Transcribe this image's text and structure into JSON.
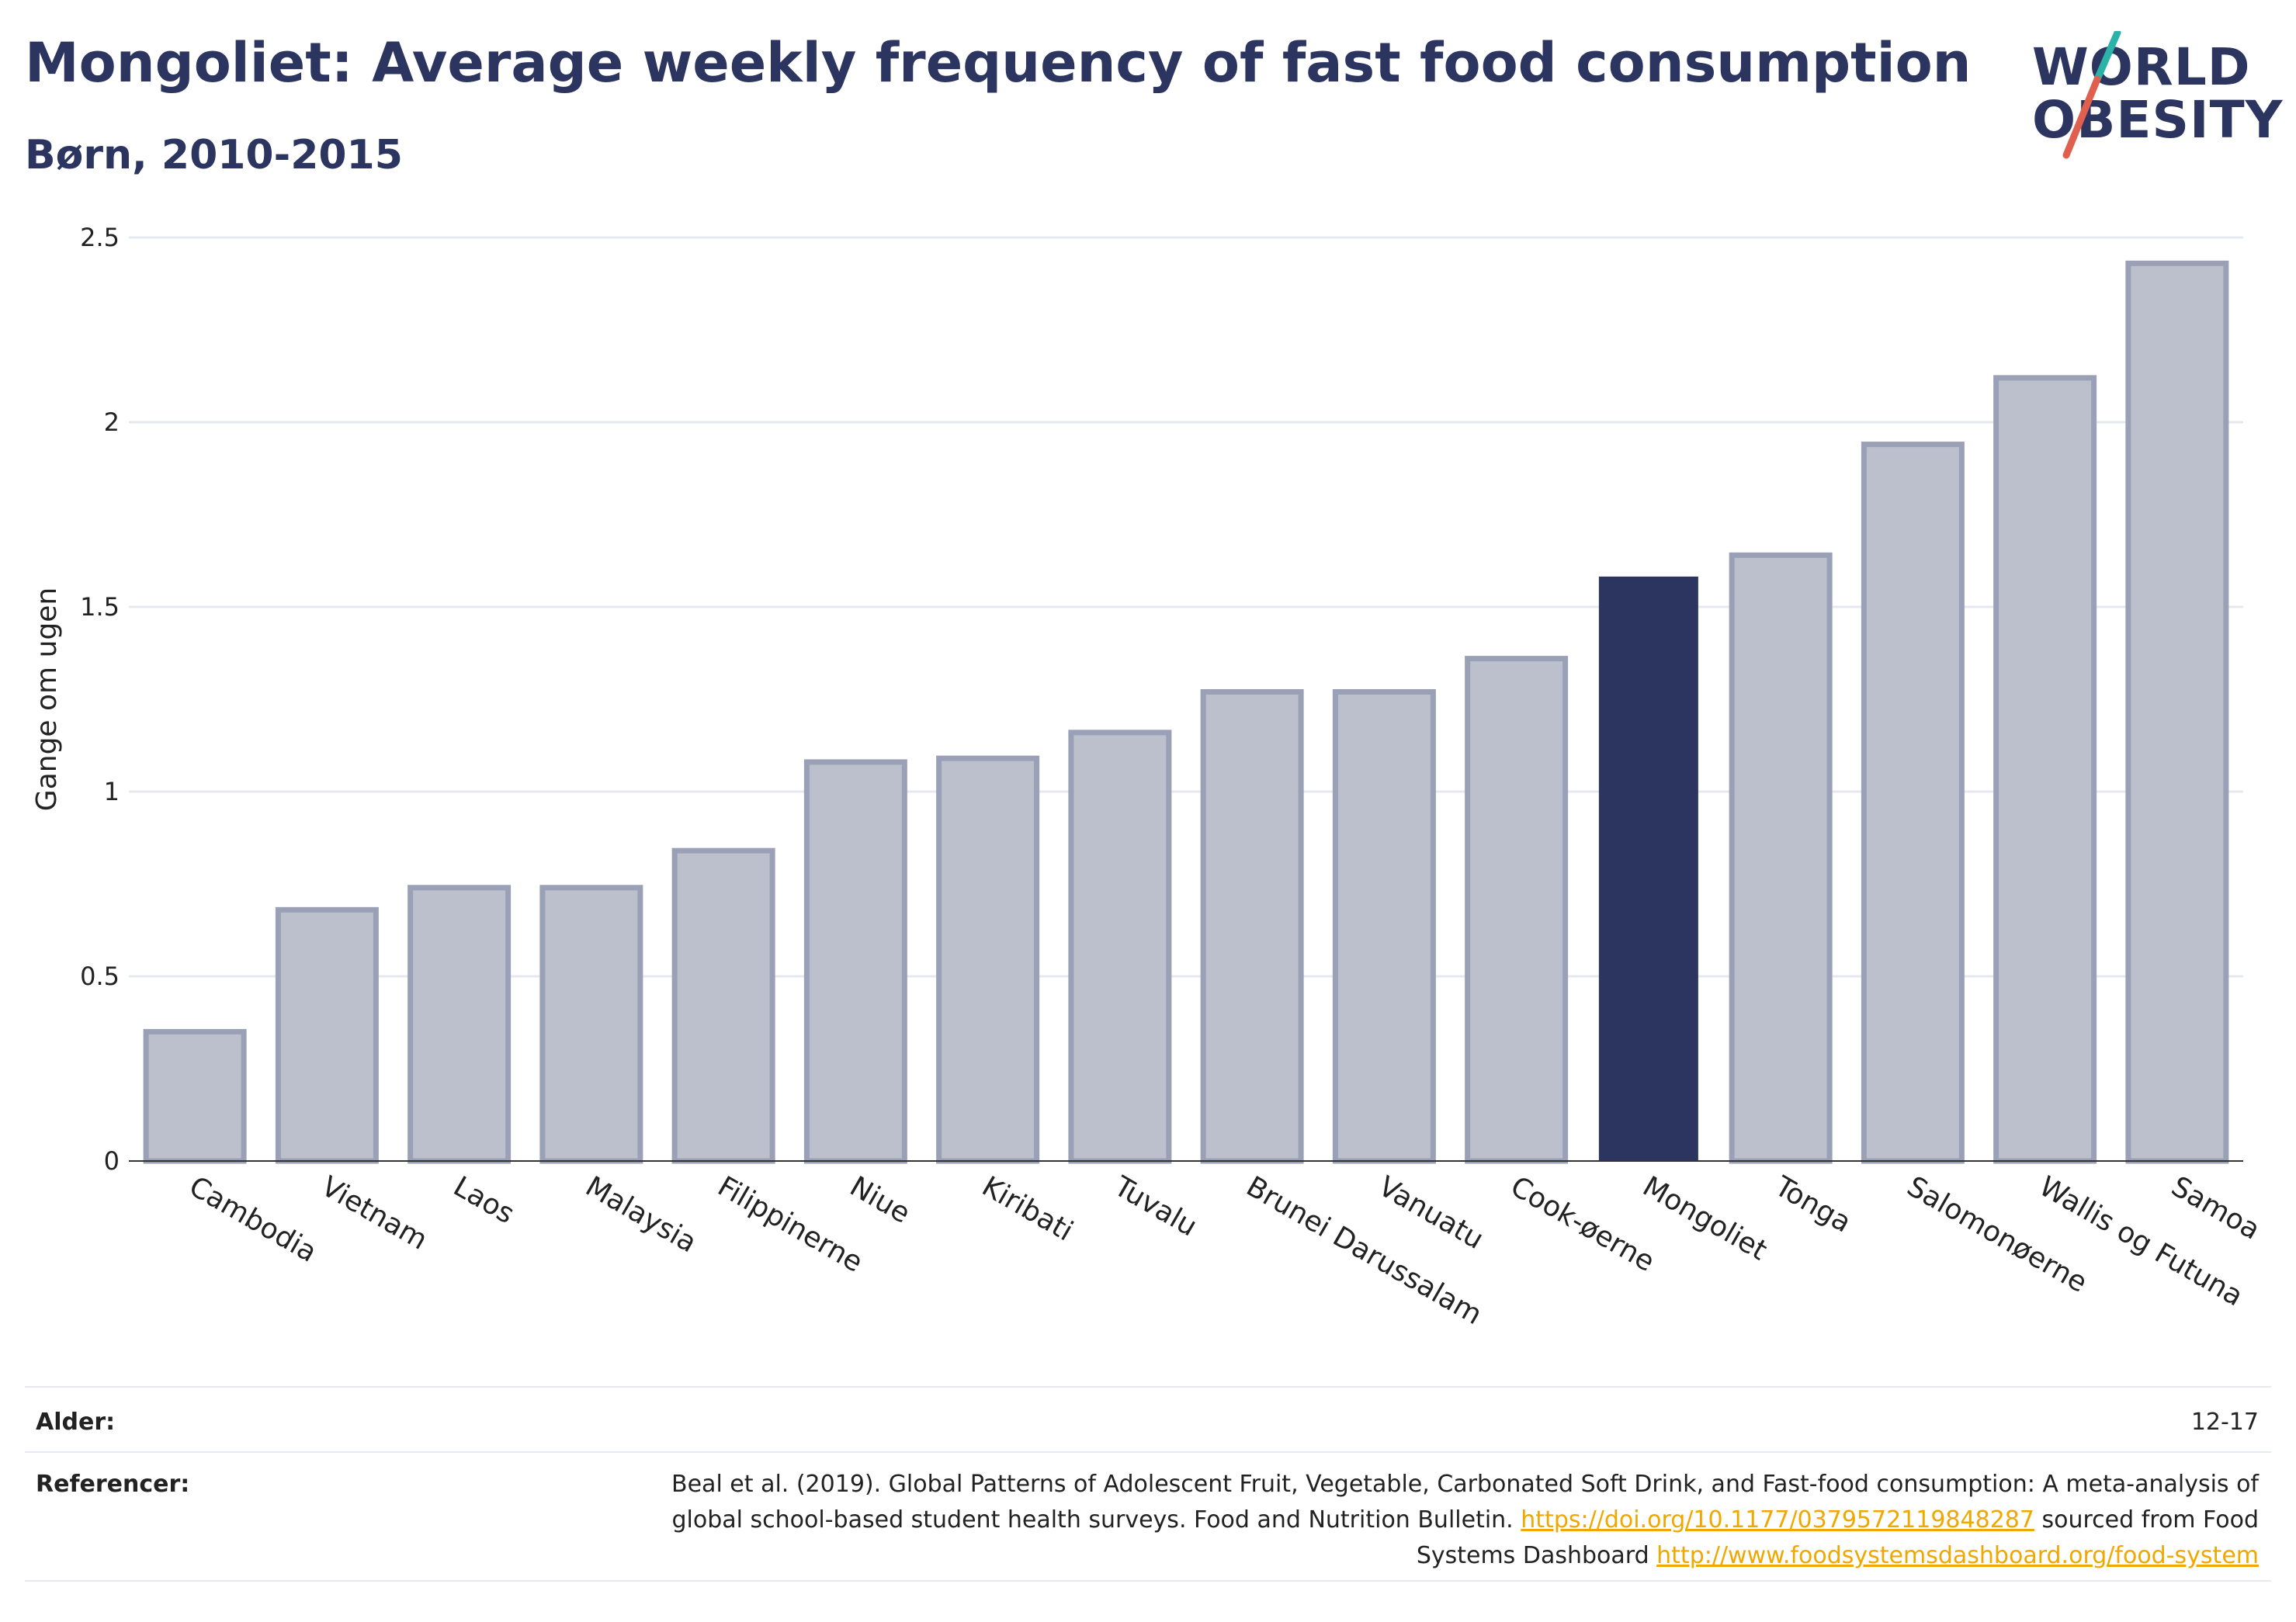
{
  "title": "Mongoliet: Average weekly frequency of fast food consumption",
  "subtitle": "Børn, 2010-2015",
  "logo": {
    "line1": "WORLD",
    "line2": "OBESITY"
  },
  "colors": {
    "highlight": "#2b3560",
    "bar": "#bcc0cd",
    "bar_edge": "#9aa0b6",
    "accent_teal": "#2bb3a8",
    "accent_red": "#e0604f",
    "link": "#f0a800"
  },
  "chart_data": {
    "type": "bar",
    "categories": [
      "Cambodia",
      "Vietnam",
      "Laos",
      "Malaysia",
      "Filippinerne",
      "Niue",
      "Kiribati",
      "Tuvalu",
      "Brunei Darussalam",
      "Vanuatu",
      "Cook-øerne",
      "Mongoliet",
      "Tonga",
      "Salomonøerne",
      "Wallis og Futuna",
      "Samoa"
    ],
    "values": [
      0.35,
      0.68,
      0.74,
      0.74,
      0.84,
      1.08,
      1.09,
      1.16,
      1.27,
      1.27,
      1.36,
      1.58,
      1.64,
      1.94,
      2.12,
      2.43
    ],
    "highlight": "Mongoliet",
    "ylabel": "Gange om ugen",
    "ylim": [
      0,
      2.5
    ],
    "yticks": [
      0,
      0.5,
      1,
      1.5,
      2,
      2.5
    ],
    "ytick_labels": [
      "0",
      "0.5",
      "1",
      "1.5",
      "2",
      "2.5"
    ],
    "grid": true
  },
  "footer": {
    "age_label": "Alder:",
    "age_value": "12-17",
    "ref_label": "Referencer:",
    "ref_text": "Beal et al. (2019). Global Patterns of Adolescent Fruit, Vegetable, Carbonated Soft Drink, and Fast-food consumption: A meta-analysis of global school-based student health surveys. Food and Nutrition Bulletin.",
    "ref_link1": "https://doi.org/10.1177/0379572119848287",
    "ref_mid": "sourced from Food Systems Dashboard",
    "ref_link2": "http://www.foodsystemsdashboard.org/food-system"
  }
}
